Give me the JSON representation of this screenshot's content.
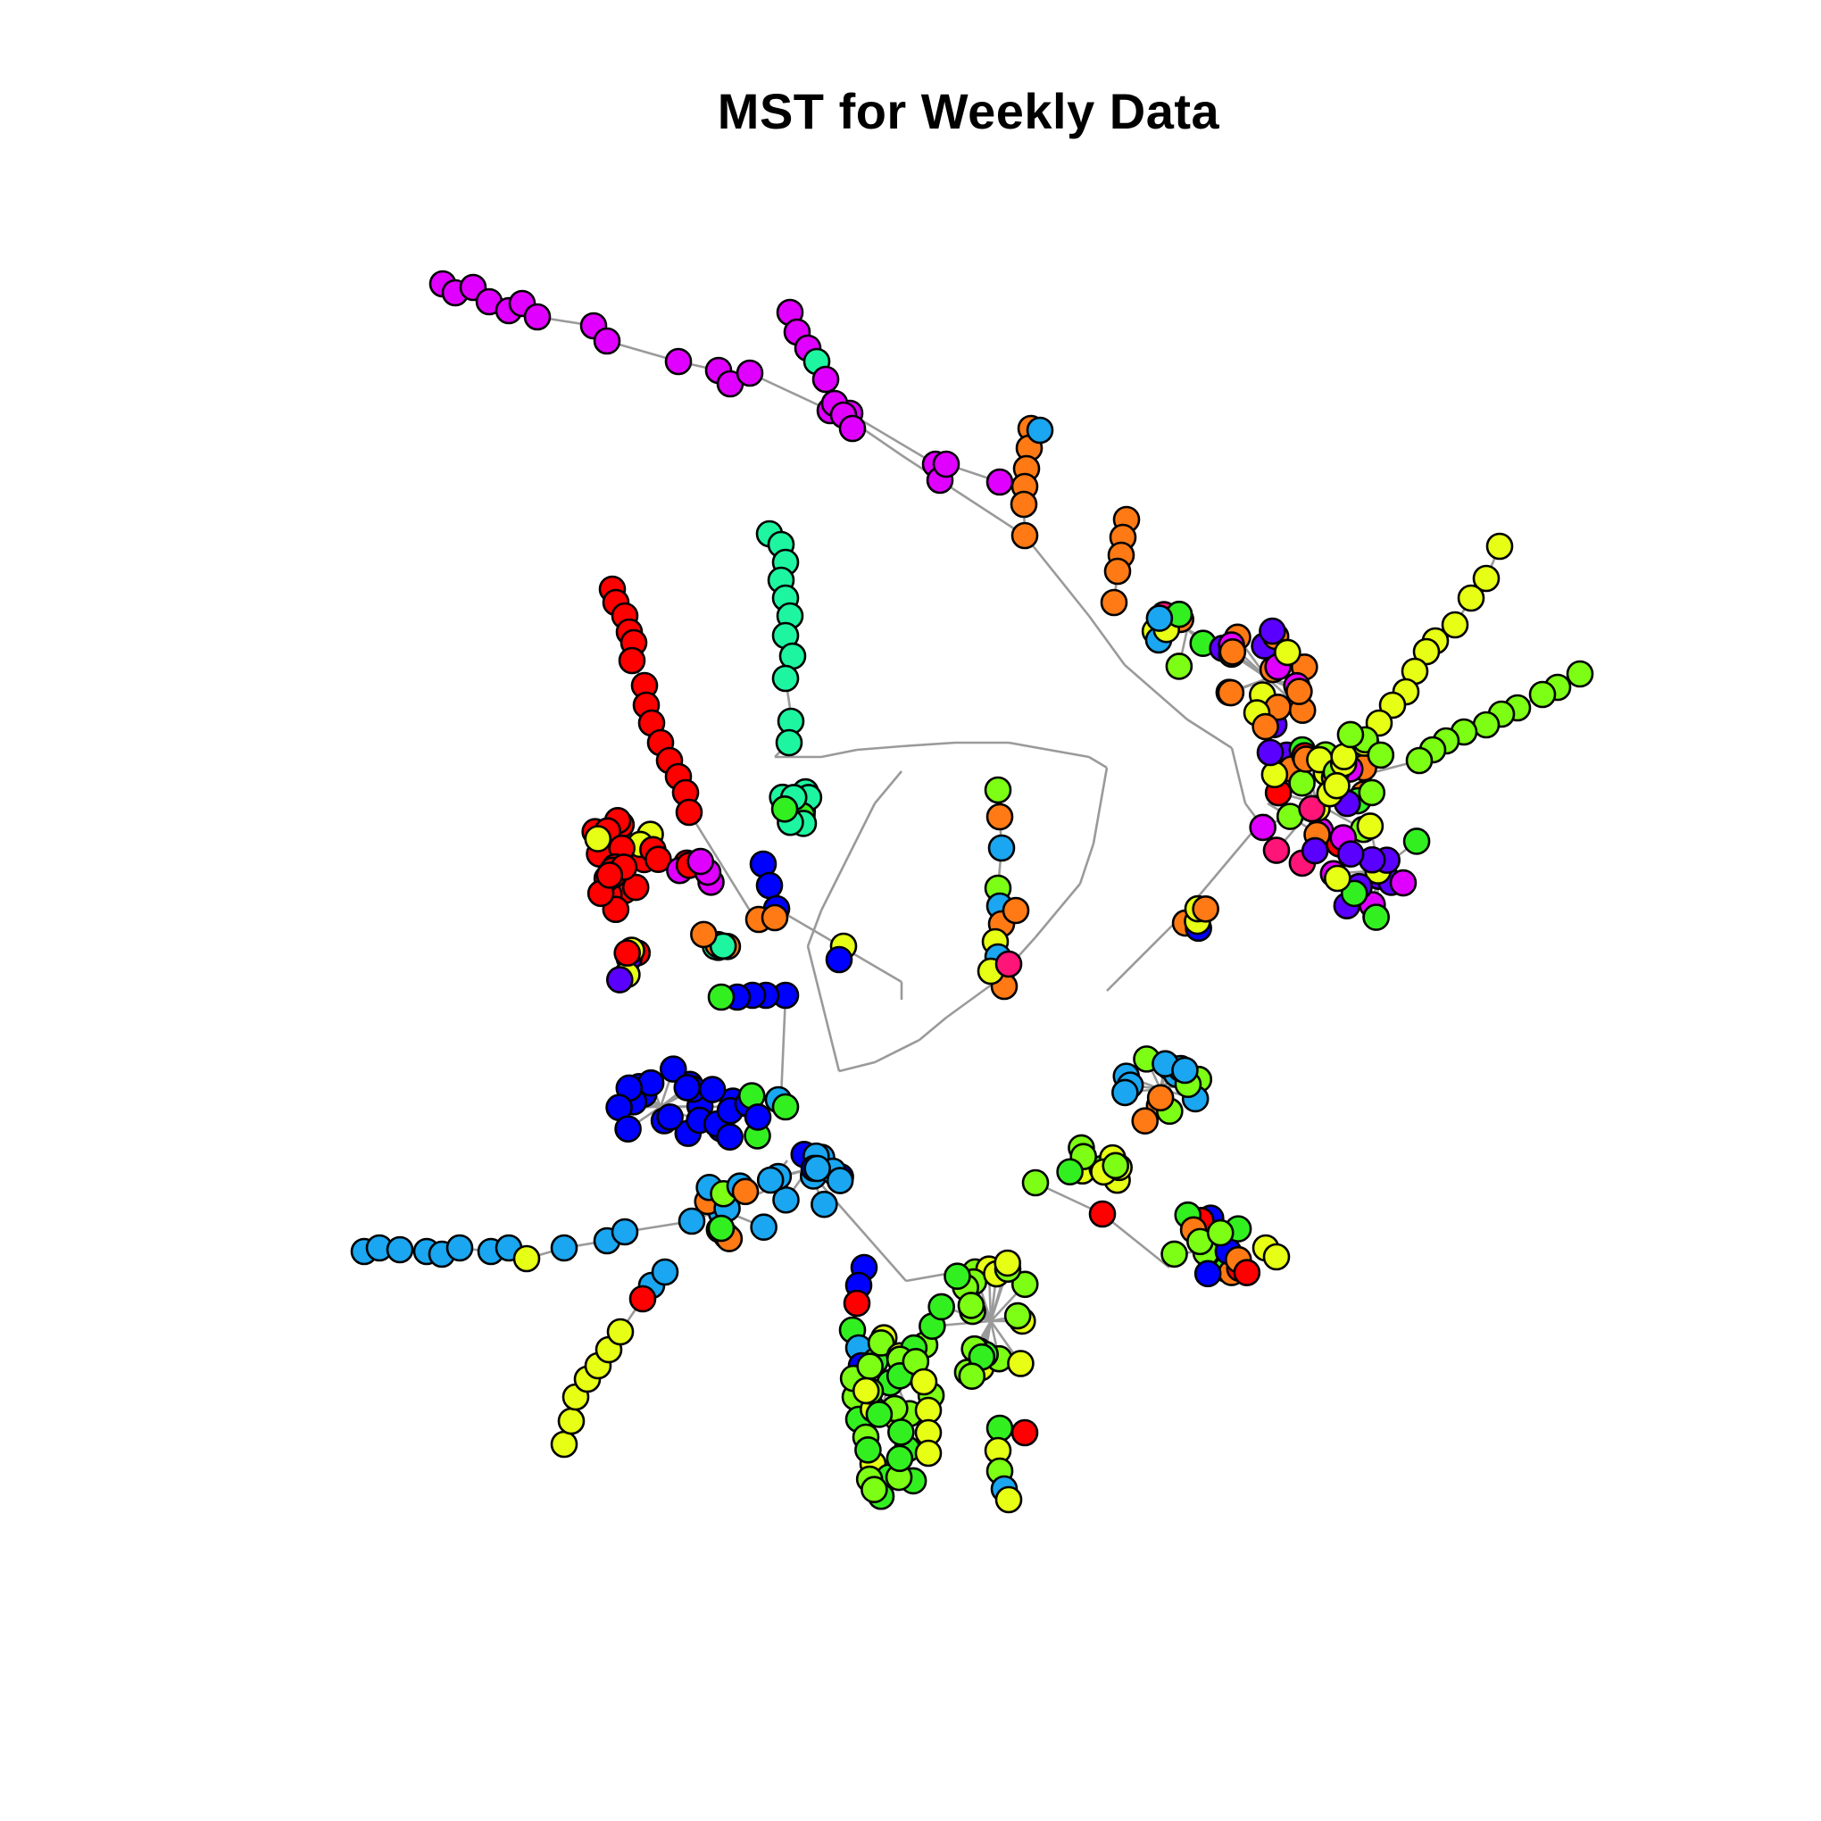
{
  "title": "MST for Weekly Data",
  "palette": {
    "magenta": "#E000FF",
    "teal": "#1EF5A0",
    "red": "#FF0000",
    "blue": "#0000FF",
    "skyblue": "#1AA6F0",
    "yellow": "#E6FF14",
    "green": "#32F020",
    "lime": "#7CFF14",
    "orange": "#FF7A14",
    "violet": "#5A00FF",
    "pink": "#FF1478",
    "edge": "#9A9A9A"
  }
}
